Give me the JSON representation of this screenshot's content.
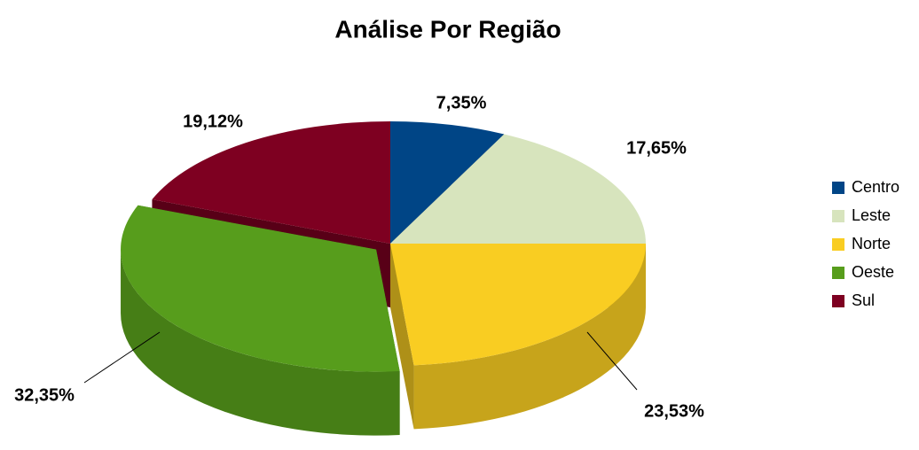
{
  "chart_data": {
    "type": "pie",
    "title": "Análise Por Região",
    "categories": [
      "Centro",
      "Leste",
      "Norte",
      "Oeste",
      "Sul"
    ],
    "values": [
      7.35,
      17.65,
      23.53,
      32.35,
      19.12
    ],
    "value_labels": [
      "7,35%",
      "17,65%",
      "23,53%",
      "32,35%",
      "19,12%"
    ],
    "colors": [
      "#004586",
      "#d7e4bd",
      "#f9cd22",
      "#579d1c",
      "#7e0021"
    ],
    "legend": "right"
  }
}
